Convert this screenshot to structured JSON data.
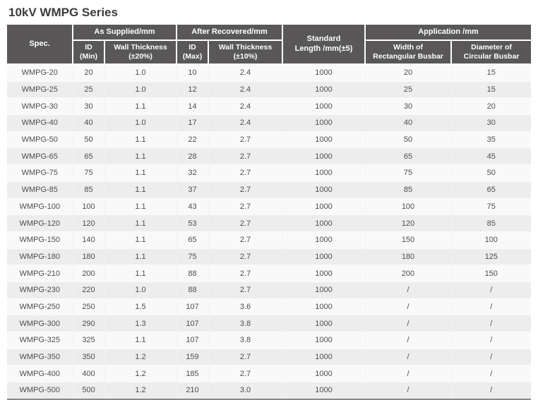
{
  "page": {
    "title": "10kV WMPG Series"
  },
  "colors": {
    "header_bg": "#595757",
    "header_text": "#ffffff",
    "row_odd_bg": "#f9f9f9",
    "row_even_bg": "#ededed",
    "body_text": "#4d4d4d",
    "title_text": "#3b3b3b",
    "bottom_border": "#8a8a8a"
  },
  "chart_data": {
    "type": "table",
    "title": "10kV WMPG Series",
    "column_groups": [
      {
        "label": "Spec.",
        "span": "2 rows"
      },
      {
        "label": "As Supplied/mm",
        "span": "2 cols"
      },
      {
        "label": "After Recovered/mm",
        "span": "2 cols"
      },
      {
        "label": "Standard\nLength /mm(±5)",
        "span": "2 rows"
      },
      {
        "label": "Application /mm",
        "span": "2 cols"
      }
    ],
    "sub_columns": [
      "ID\n(Min)",
      "Wall Thickness\n(±20%)",
      "ID\n(Max)",
      "Wall Thickness\n(±10%)",
      "Width of\nRectangular Busbar",
      "Diameter of\nCircular Busbar"
    ],
    "leaf_columns": [
      "Spec.",
      "ID (Min)",
      "Wall Thickness (±20%)",
      "ID (Max)",
      "Wall Thickness (±10%)",
      "Standard Length /mm(±5)",
      "Width of Rectangular Busbar",
      "Diameter of Circular Busbar"
    ],
    "rows": [
      [
        "WMPG-20",
        "20",
        "1.0",
        "10",
        "2.4",
        "1000",
        "20",
        "15"
      ],
      [
        "WMPG-25",
        "25",
        "1.0",
        "12",
        "2.4",
        "1000",
        "25",
        "15"
      ],
      [
        "WMPG-30",
        "30",
        "1.1",
        "14",
        "2.4",
        "1000",
        "30",
        "20"
      ],
      [
        "WMPG-40",
        "40",
        "1.0",
        "17",
        "2.4",
        "1000",
        "40",
        "30"
      ],
      [
        "WMPG-50",
        "50",
        "1.1",
        "22",
        "2.7",
        "1000",
        "50",
        "35"
      ],
      [
        "WMPG-65",
        "65",
        "1.1",
        "28",
        "2.7",
        "1000",
        "65",
        "45"
      ],
      [
        "WMPG-75",
        "75",
        "1.1",
        "32",
        "2.7",
        "1000",
        "75",
        "50"
      ],
      [
        "WMPG-85",
        "85",
        "1.1",
        "37",
        "2.7",
        "1000",
        "85",
        "65"
      ],
      [
        "WMPG-100",
        "100",
        "1.1",
        "43",
        "2.7",
        "1000",
        "100",
        "75"
      ],
      [
        "WMPG-120",
        "120",
        "1.1",
        "53",
        "2.7",
        "1000",
        "120",
        "85"
      ],
      [
        "WMPG-150",
        "140",
        "1.1",
        "65",
        "2.7",
        "1000",
        "150",
        "100"
      ],
      [
        "WMPG-180",
        "180",
        "1.1",
        "75",
        "2.7",
        "1000",
        "180",
        "125"
      ],
      [
        "WMPG-210",
        "200",
        "1.1",
        "88",
        "2.7",
        "1000",
        "200",
        "150"
      ],
      [
        "WMPG-230",
        "220",
        "1.0",
        "88",
        "2.7",
        "1000",
        "/",
        "/"
      ],
      [
        "WMPG-250",
        "250",
        "1.5",
        "107",
        "3.6",
        "1000",
        "/",
        "/"
      ],
      [
        "WMPG-300",
        "290",
        "1.3",
        "107",
        "3.8",
        "1000",
        "/",
        "/"
      ],
      [
        "WMPG-325",
        "325",
        "1.1",
        "107",
        "3.8",
        "1000",
        "/",
        "/"
      ],
      [
        "WMPG-350",
        "350",
        "1.2",
        "159",
        "2.7",
        "1000",
        "/",
        "/"
      ],
      [
        "WMPG-400",
        "400",
        "1.2",
        "185",
        "2.7",
        "1000",
        "/",
        "/"
      ],
      [
        "WMPG-500",
        "500",
        "1.2",
        "210",
        "3.0",
        "1000",
        "/",
        "/"
      ]
    ]
  }
}
